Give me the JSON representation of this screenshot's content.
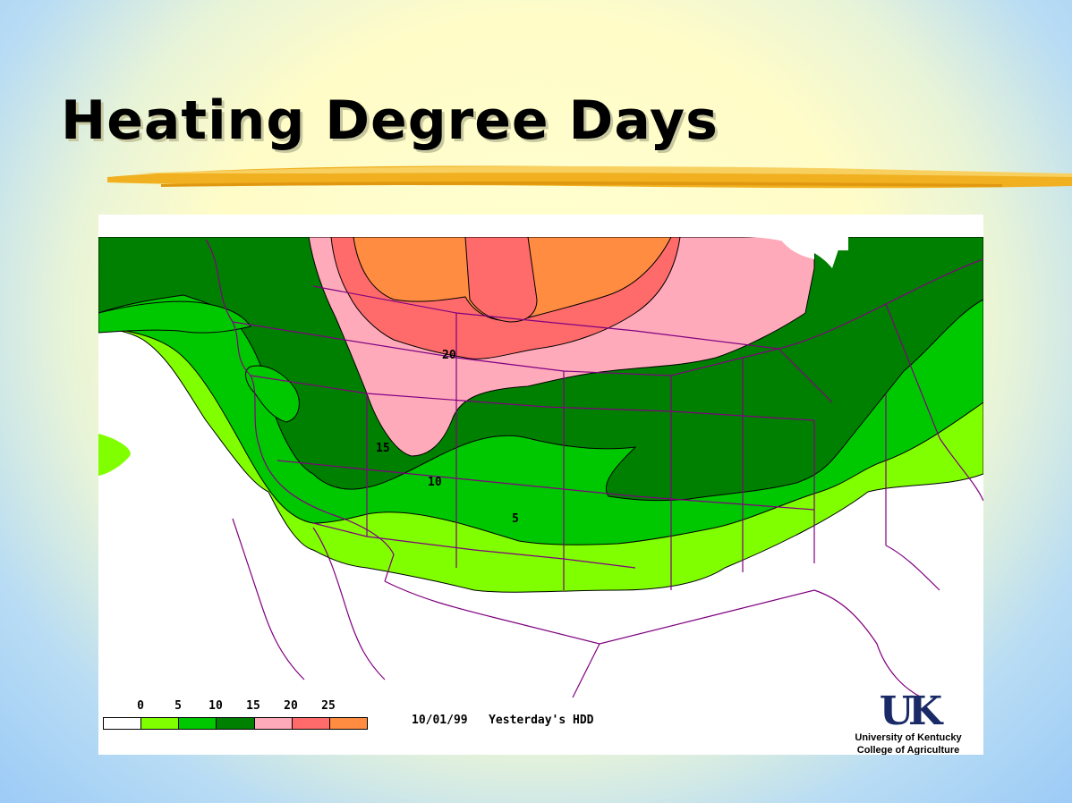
{
  "slide": {
    "title": "Heating Degree Days"
  },
  "map": {
    "date": "10/01/99",
    "product": "Yesterday's HDD",
    "contour_labels": [
      "20",
      "15",
      "10",
      "5"
    ],
    "legend": {
      "ticks": [
        "0",
        "5",
        "10",
        "15",
        "20",
        "25"
      ],
      "colors": [
        "#ffffff",
        "#80ff00",
        "#00c800",
        "#008000",
        "#ffaabb",
        "#ff6a6a",
        "#ff8c40"
      ]
    },
    "colors": {
      "hdd_0_5": "#80ff00",
      "hdd_5_10": "#00c800",
      "hdd_10_15": "#008000",
      "hdd_15_20": "#ffaabb",
      "hdd_20_25": "#ff6a6a",
      "hdd_25_plus": "#ff8c40",
      "borders": "#800080"
    }
  },
  "logo": {
    "mark": "UK",
    "line1": "University of Kentucky",
    "line2": "College of Agriculture"
  }
}
